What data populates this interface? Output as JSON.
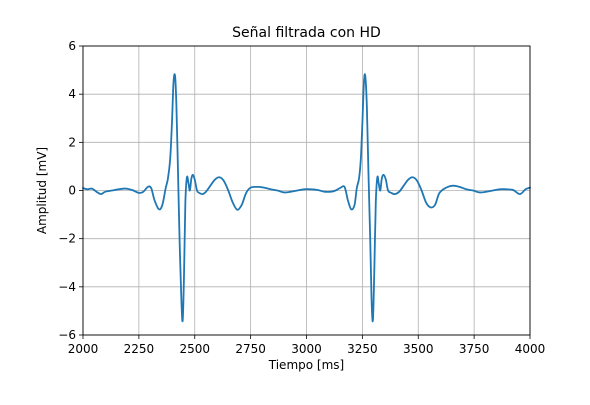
{
  "chart_data": {
    "type": "line",
    "title": "Señal filtrada con HD",
    "xlabel": "Tiempo [ms]",
    "ylabel": "Amplitud [mV]",
    "xlim": [
      2000,
      4000
    ],
    "ylim": [
      -6,
      6
    ],
    "x_ticks": [
      2000,
      2250,
      2500,
      2750,
      3000,
      3250,
      3500,
      3750,
      4000
    ],
    "y_ticks": [
      -6,
      -4,
      -2,
      0,
      2,
      4,
      6
    ],
    "y_tick_labels": [
      "−6",
      "−4",
      "−2",
      "0",
      "2",
      "4",
      "6"
    ],
    "grid": true,
    "legend": "none",
    "line_color": "#1f77b4",
    "series": [
      {
        "x": [
          2000,
          2020,
          2040,
          2060,
          2080,
          2100,
          2130,
          2160,
          2190,
          2220,
          2250,
          2270,
          2290,
          2305,
          2320,
          2340,
          2355,
          2370,
          2380,
          2390,
          2398,
          2405,
          2412,
          2418,
          2425,
          2432,
          2440,
          2446,
          2452,
          2458,
          2465,
          2472,
          2478,
          2485,
          2492,
          2500,
          2510,
          2520,
          2535,
          2550,
          2570,
          2590,
          2610,
          2630,
          2650,
          2670,
          2690,
          2710,
          2730,
          2750,
          2780,
          2810,
          2840,
          2870,
          2900,
          2930,
          2960,
          2990,
          3020,
          3050,
          3080,
          3110,
          3130,
          3150,
          3170,
          3185,
          3200,
          3215,
          3225,
          3235,
          3243,
          3250,
          3257,
          3263,
          3270,
          3277,
          3285,
          3291,
          3297,
          3303,
          3310,
          3317,
          3323,
          3330,
          3337,
          3345,
          3355,
          3365,
          3380,
          3395,
          3415,
          3435,
          3455,
          3475,
          3495,
          3515,
          3535,
          3555,
          3575,
          3595,
          3625,
          3655,
          3685,
          3715,
          3745,
          3775,
          3805,
          3835,
          3865,
          3895,
          3925,
          3955,
          3980,
          4000
        ],
        "y": [
          0.1,
          0.05,
          0.08,
          -0.05,
          -0.15,
          -0.05,
          0.0,
          0.05,
          0.08,
          0.02,
          -0.1,
          -0.05,
          0.15,
          0.1,
          -0.4,
          -0.78,
          -0.6,
          0.1,
          0.5,
          1.3,
          2.8,
          4.5,
          4.75,
          3.5,
          0.8,
          -2.0,
          -4.5,
          -5.4,
          -3.5,
          -0.5,
          0.55,
          0.3,
          0.0,
          0.5,
          0.65,
          0.45,
          0.0,
          -0.1,
          -0.15,
          -0.05,
          0.2,
          0.45,
          0.55,
          0.4,
          0.0,
          -0.5,
          -0.8,
          -0.6,
          -0.1,
          0.12,
          0.15,
          0.12,
          0.05,
          0.0,
          -0.08,
          -0.05,
          0.0,
          0.05,
          0.05,
          0.02,
          -0.05,
          -0.05,
          0.0,
          0.1,
          0.15,
          -0.4,
          -0.78,
          -0.6,
          0.1,
          0.5,
          1.3,
          2.8,
          4.5,
          4.75,
          3.5,
          0.8,
          -2.0,
          -4.5,
          -5.4,
          -3.5,
          -0.5,
          0.55,
          0.3,
          0.0,
          0.5,
          0.65,
          0.45,
          0.0,
          -0.1,
          -0.15,
          -0.05,
          0.2,
          0.45,
          0.55,
          0.4,
          0.0,
          -0.5,
          -0.7,
          -0.6,
          -0.1,
          0.12,
          0.2,
          0.15,
          0.05,
          0.0,
          -0.08,
          -0.05,
          0.0,
          0.05,
          0.05,
          0.02,
          -0.15,
          0.05,
          0.12
        ]
      }
    ]
  }
}
